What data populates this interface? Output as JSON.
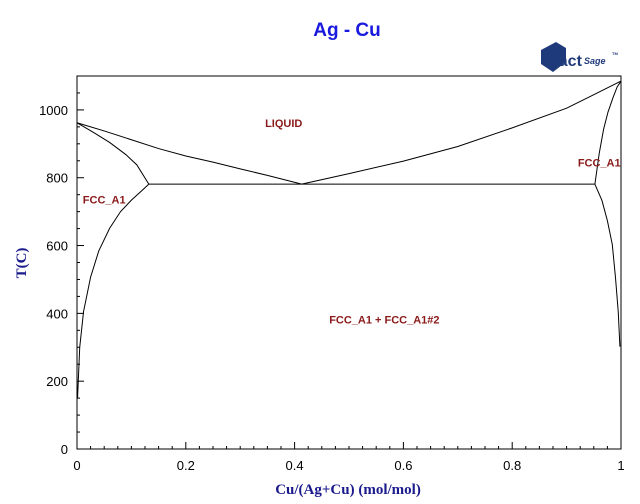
{
  "chart_data": {
    "type": "line",
    "title": "Ag - Cu",
    "xlabel": "Cu/(Ag+Cu) (mol/mol)",
    "ylabel": "T(C)",
    "xlim": [
      0,
      1
    ],
    "ylim": [
      0,
      1100
    ],
    "x_ticks": [
      {
        "value": 0,
        "label": "0"
      },
      {
        "value": 0.2,
        "label": "0.2"
      },
      {
        "value": 0.4,
        "label": "0.4"
      },
      {
        "value": 0.6,
        "label": "0.6"
      },
      {
        "value": 0.8,
        "label": "0.8"
      },
      {
        "value": 1,
        "label": "1"
      }
    ],
    "y_ticks": [
      {
        "value": 0,
        "label": "0"
      },
      {
        "value": 200,
        "label": "200"
      },
      {
        "value": 400,
        "label": "400"
      },
      {
        "value": 600,
        "label": "600"
      },
      {
        "value": 800,
        "label": "800"
      },
      {
        "value": 1000,
        "label": "1000"
      }
    ],
    "series": [
      {
        "points": [
          [
            0,
            962
          ],
          [
            0.05,
            938
          ],
          [
            0.1,
            912
          ],
          [
            0.15,
            886
          ],
          [
            0.2,
            864
          ],
          [
            0.25,
            846
          ],
          [
            0.3,
            826
          ],
          [
            0.35,
            807
          ],
          [
            0.413,
            781
          ]
        ]
      },
      {
        "points": [
          [
            0.413,
            781
          ],
          [
            0.5,
            812
          ],
          [
            0.6,
            849
          ],
          [
            0.7,
            892
          ],
          [
            0.8,
            947
          ],
          [
            0.9,
            1005
          ],
          [
            0.95,
            1045
          ],
          [
            1,
            1085
          ]
        ]
      },
      {
        "points": [
          [
            0,
            962
          ],
          [
            0.03,
            934
          ],
          [
            0.06,
            904
          ],
          [
            0.09,
            868
          ],
          [
            0.11,
            838
          ],
          [
            0.132,
            781
          ]
        ]
      },
      {
        "points": [
          [
            0.132,
            781
          ],
          [
            0.12,
            763
          ],
          [
            0.1,
            734
          ],
          [
            0.08,
            700
          ],
          [
            0.06,
            651
          ],
          [
            0.04,
            584
          ],
          [
            0.025,
            507
          ],
          [
            0.012,
            405
          ],
          [
            0.005,
            300
          ],
          [
            0.001,
            150
          ]
        ]
      },
      {
        "points": [
          [
            0.132,
            781
          ],
          [
            0.952,
            781
          ]
        ]
      },
      {
        "points": [
          [
            0.952,
            781
          ],
          [
            0.96,
            872
          ],
          [
            0.968,
            943
          ],
          [
            0.976,
            993
          ],
          [
            0.985,
            1035
          ],
          [
            0.993,
            1068
          ],
          [
            1,
            1085
          ]
        ]
      },
      {
        "points": [
          [
            0.952,
            781
          ],
          [
            0.965,
            733
          ],
          [
            0.975,
            673
          ],
          [
            0.984,
            603
          ],
          [
            0.99,
            503
          ],
          [
            0.995,
            403
          ],
          [
            0.998,
            302
          ]
        ]
      }
    ],
    "annotations": [
      {
        "text": "LIQUID",
        "x": 0.38,
        "y": 962
      },
      {
        "text": "FCC_A1",
        "x": 0.05,
        "y": 736
      },
      {
        "text": "FCC_A1",
        "x": 0.96,
        "y": 845
      },
      {
        "text": "FCC_A1 + FCC_A1#2",
        "x": 0.565,
        "y": 382
      }
    ],
    "grid": false
  },
  "logo": {
    "brand": "FactSage",
    "part1": "Fact",
    "part2": "Sage",
    "tm": "TM"
  }
}
